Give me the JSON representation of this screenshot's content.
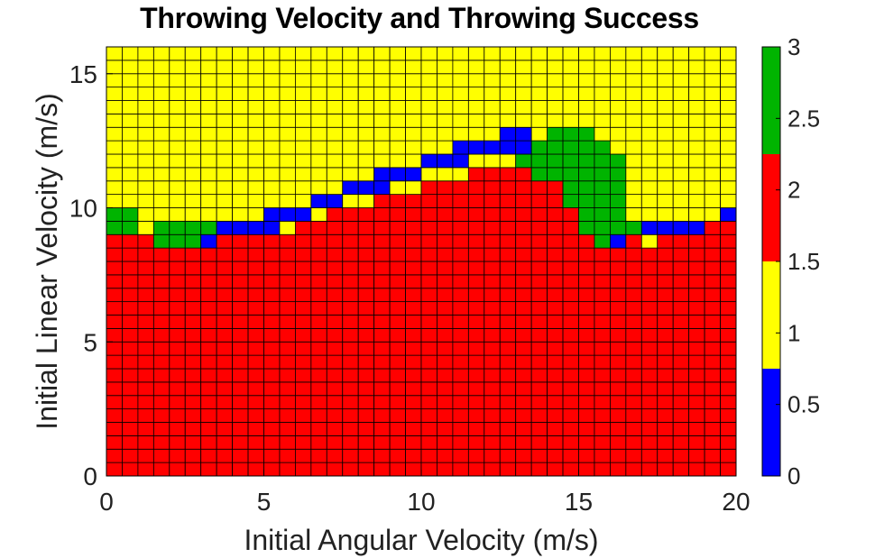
{
  "chart_data": {
    "type": "heatmap",
    "title": "Throwing Velocity and Throwing Success",
    "xlabel": "Initial Angular Velocity (m/s)",
    "ylabel": "Initial Linear Velocity (m/s)",
    "xlim": [
      0,
      20
    ],
    "ylim": [
      0,
      16
    ],
    "x_ticks": [
      "0",
      "5",
      "10",
      "15",
      "20"
    ],
    "y_ticks": [
      "0",
      "5",
      "10",
      "15"
    ],
    "grid": "cell edges (40 x 32)",
    "colorbar": {
      "range": [
        0,
        3
      ],
      "ticks": [
        "0",
        "0.5",
        "1",
        "1.5",
        "2",
        "2.5",
        "3"
      ],
      "colors": [
        "#0000ff",
        "#ffff00",
        "#ff0000",
        "#00b400"
      ]
    },
    "color_map": {
      "0": "#0000ff",
      "1": "#ffff00",
      "2": "#ff0000",
      "3": "#00b400"
    },
    "cell_size": [
      0.5,
      0.5
    ],
    "value_encoding": "default 2 (red) below boundary, 1 (yellow) above; listed cells override",
    "column_boundary_y": [
      9,
      9,
      9,
      8.5,
      8.5,
      8.5,
      8.5,
      9,
      9,
      9,
      9,
      9,
      9.5,
      9.5,
      10,
      10,
      10,
      10.5,
      10.5,
      10.5,
      11,
      11,
      11,
      11.5,
      11.5,
      11.5,
      11.5,
      11.5,
      11.5,
      11,
      11,
      10,
      9.5,
      9.5,
      8.5,
      9,
      9,
      9,
      9,
      9.5
    ],
    "overrides": [
      {
        "value": 3,
        "cells": [
          [
            0,
            9
          ],
          [
            0.5,
            9
          ],
          [
            0,
            9.5
          ],
          [
            0.5,
            9.5
          ],
          [
            1.5,
            8.5
          ],
          [
            2,
            8.5
          ],
          [
            2.5,
            8.5
          ],
          [
            1.5,
            9
          ],
          [
            2,
            9
          ],
          [
            2.5,
            9
          ],
          [
            3,
            9
          ],
          [
            13,
            11.5
          ],
          [
            13.5,
            11
          ],
          [
            13.5,
            11.5
          ],
          [
            13.5,
            12
          ],
          [
            14,
            11
          ],
          [
            14,
            11.5
          ],
          [
            14,
            12
          ],
          [
            14,
            12.5
          ],
          [
            14.5,
            10
          ],
          [
            14.5,
            10.5
          ],
          [
            14.5,
            11
          ],
          [
            14.5,
            11.5
          ],
          [
            14.5,
            12
          ],
          [
            14.5,
            12.5
          ],
          [
            15,
            9
          ],
          [
            15,
            9.5
          ],
          [
            15,
            10
          ],
          [
            15,
            10.5
          ],
          [
            15,
            11
          ],
          [
            15,
            11.5
          ],
          [
            15,
            12
          ],
          [
            15,
            12.5
          ],
          [
            15.5,
            8.5
          ],
          [
            15.5,
            9
          ],
          [
            15.5,
            9.5
          ],
          [
            15.5,
            10
          ],
          [
            15.5,
            10.5
          ],
          [
            15.5,
            11
          ],
          [
            15.5,
            11.5
          ],
          [
            15.5,
            12
          ],
          [
            16,
            9
          ],
          [
            16,
            9.5
          ],
          [
            16,
            10
          ],
          [
            16,
            10.5
          ],
          [
            16,
            11
          ],
          [
            16,
            11.5
          ],
          [
            16.5,
            9
          ]
        ]
      },
      {
        "value": 0,
        "cells": [
          [
            3,
            8.5
          ],
          [
            3.5,
            9
          ],
          [
            4,
            9
          ],
          [
            4.5,
            9
          ],
          [
            5,
            9
          ],
          [
            5,
            9.5
          ],
          [
            5.5,
            9.5
          ],
          [
            6,
            9.5
          ],
          [
            6.5,
            10
          ],
          [
            7,
            10
          ],
          [
            7.5,
            10.5
          ],
          [
            8,
            10.5
          ],
          [
            8.5,
            10.5
          ],
          [
            8.5,
            11
          ],
          [
            9,
            11
          ],
          [
            9.5,
            11
          ],
          [
            10,
            11.5
          ],
          [
            10.5,
            11.5
          ],
          [
            11,
            11.5
          ],
          [
            11,
            12
          ],
          [
            11.5,
            12
          ],
          [
            12,
            12
          ],
          [
            12.5,
            12
          ],
          [
            12.5,
            12.5
          ],
          [
            13,
            12
          ],
          [
            13,
            12.5
          ],
          [
            16,
            8.5
          ],
          [
            17,
            9
          ],
          [
            17.5,
            9
          ],
          [
            18,
            9
          ],
          [
            18.5,
            9
          ],
          [
            19.5,
            9.5
          ]
        ]
      },
      {
        "value": 2,
        "cells": [
          [
            19,
            9
          ]
        ]
      }
    ]
  }
}
